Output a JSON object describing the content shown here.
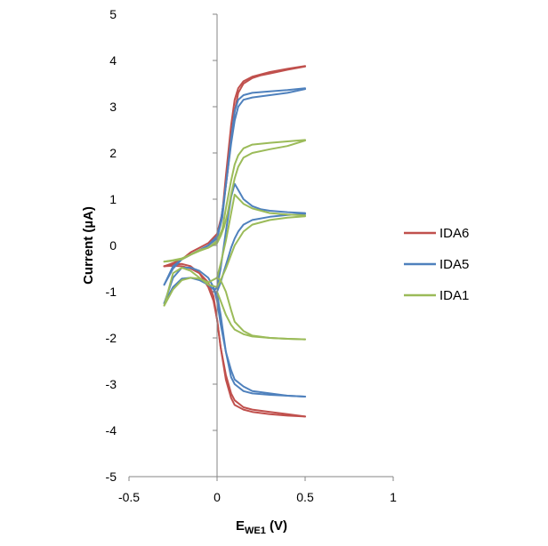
{
  "chart_data": {
    "type": "line",
    "title": "",
    "xlabel_main": "E",
    "xlabel_sub": "WE1",
    "xlabel_unit": " (V)",
    "ylabel": "Current (µA)",
    "xlim": [
      -0.5,
      1
    ],
    "ylim": [
      -5,
      5
    ],
    "x_ticks": [
      -0.5,
      0,
      0.5,
      1
    ],
    "x_tick_labels": [
      "-0.5",
      "0",
      "0.5",
      "1"
    ],
    "y_ticks": [
      -5,
      -4,
      -3,
      -2,
      -1,
      0,
      1,
      2,
      3,
      4,
      5
    ],
    "y_tick_labels": [
      "-5",
      "-4",
      "-3",
      "-2",
      "-1",
      "0",
      "1",
      "2",
      "3",
      "4",
      "5"
    ],
    "grid": false,
    "legend_position": "right",
    "series": [
      {
        "name": "IDA6",
        "color": "#c0504d",
        "curves": [
          {
            "x": [
              -0.3,
              -0.25,
              -0.2,
              -0.15,
              -0.1,
              -0.05,
              0,
              0.03,
              0.05,
              0.08,
              0.1,
              0.12,
              0.15,
              0.2,
              0.25,
              0.3,
              0.4,
              0.5
            ],
            "y": [
              -0.45,
              -0.4,
              -0.3,
              -0.15,
              -0.05,
              0.05,
              0.25,
              0.7,
              1.5,
              2.6,
              3.15,
              3.4,
              3.55,
              3.65,
              3.7,
              3.75,
              3.82,
              3.88
            ]
          },
          {
            "x": [
              0.5,
              0.4,
              0.3,
              0.25,
              0.2,
              0.15,
              0.12,
              0.1,
              0.08,
              0.06,
              0.04,
              0.02,
              0,
              -0.05,
              -0.1,
              -0.15,
              -0.2,
              -0.25,
              -0.3
            ],
            "y": [
              3.87,
              3.8,
              3.72,
              3.68,
              3.62,
              3.5,
              3.3,
              2.9,
              2.3,
              1.6,
              1.0,
              0.5,
              0.2,
              0.0,
              -0.1,
              -0.2,
              -0.3,
              -0.38,
              -0.45
            ]
          },
          {
            "x": [
              -0.3,
              -0.25,
              -0.2,
              -0.15,
              -0.1,
              -0.05,
              -0.02,
              0,
              0.02,
              0.05,
              0.08,
              0.1,
              0.15,
              0.2,
              0.3,
              0.4,
              0.5
            ],
            "y": [
              -0.45,
              -0.42,
              -0.4,
              -0.45,
              -0.6,
              -0.9,
              -1.2,
              -1.6,
              -2.2,
              -2.8,
              -3.2,
              -3.35,
              -3.5,
              -3.55,
              -3.6,
              -3.65,
              -3.7
            ]
          },
          {
            "x": [
              0.5,
              0.4,
              0.3,
              0.2,
              0.15,
              0.1,
              0.08,
              0.05,
              0.02,
              0,
              -0.02,
              -0.05,
              -0.1,
              -0.15,
              -0.2,
              -0.25,
              -0.3
            ],
            "y": [
              -3.7,
              -3.68,
              -3.65,
              -3.6,
              -3.55,
              -3.45,
              -3.3,
              -2.9,
              -2.2,
              -1.6,
              -1.1,
              -0.8,
              -0.6,
              -0.5,
              -0.45,
              -0.44,
              -0.45
            ]
          }
        ]
      },
      {
        "name": "IDA5",
        "color": "#4f81bd",
        "curves": [
          {
            "x": [
              -0.3,
              -0.25,
              -0.2,
              -0.15,
              -0.1,
              -0.05,
              0,
              0.03,
              0.05,
              0.08,
              0.1,
              0.12,
              0.15,
              0.2,
              0.3,
              0.4,
              0.5
            ],
            "y": [
              -0.85,
              -0.45,
              -0.3,
              -0.2,
              -0.1,
              0.0,
              0.15,
              0.6,
              1.3,
              2.3,
              2.9,
              3.15,
              3.25,
              3.3,
              3.33,
              3.36,
              3.4
            ]
          },
          {
            "x": [
              0.5,
              0.4,
              0.3,
              0.2,
              0.15,
              0.12,
              0.1,
              0.08,
              0.06,
              0.04,
              0.02,
              0,
              -0.05,
              -0.1,
              -0.15,
              -0.2,
              -0.25,
              -0.3
            ],
            "y": [
              3.38,
              3.3,
              3.25,
              3.2,
              3.15,
              3.0,
              2.7,
              2.2,
              1.6,
              1.0,
              0.5,
              0.2,
              0.0,
              -0.1,
              -0.2,
              -0.3,
              -0.5,
              -0.85
            ]
          },
          {
            "x": [
              -0.3,
              -0.25,
              -0.2,
              -0.15,
              -0.1,
              -0.05,
              -0.02,
              0,
              0.02,
              0.05,
              0.08,
              0.1,
              0.15,
              0.2,
              0.3,
              0.4,
              0.5
            ],
            "y": [
              -1.25,
              -0.9,
              -0.72,
              -0.7,
              -0.75,
              -0.85,
              -0.95,
              -1.05,
              -1.5,
              -2.3,
              -2.85,
              -3.0,
              -3.15,
              -3.2,
              -3.23,
              -3.25,
              -3.27
            ]
          },
          {
            "x": [
              0.5,
              0.4,
              0.3,
              0.2,
              0.15,
              0.1,
              0.08,
              0.05,
              0.02,
              0,
              -0.02,
              -0.05,
              -0.1,
              -0.15,
              -0.2,
              -0.25,
              -0.3
            ],
            "y": [
              -3.27,
              -3.25,
              -3.2,
              -3.15,
              -3.05,
              -2.9,
              -2.7,
              -2.3,
              -1.7,
              -1.2,
              -0.9,
              -0.7,
              -0.55,
              -0.48,
              -0.48,
              -0.7,
              -1.25
            ]
          },
          {
            "x": [
              -0.02,
              0,
              0.02,
              0.05,
              0.08,
              0.1,
              0.12,
              0.15,
              0.2,
              0.25,
              0.3,
              0.4,
              0.5
            ],
            "y": [
              -1.0,
              -0.9,
              -0.5,
              0.3,
              1.05,
              1.33,
              1.2,
              1.0,
              0.85,
              0.78,
              0.75,
              0.72,
              0.7
            ]
          },
          {
            "x": [
              0.5,
              0.4,
              0.3,
              0.2,
              0.15,
              0.12,
              0.1,
              0.08,
              0.06,
              0.04,
              0.02,
              0
            ],
            "y": [
              0.68,
              0.66,
              0.62,
              0.55,
              0.45,
              0.3,
              0.15,
              -0.05,
              -0.3,
              -0.55,
              -0.8,
              -1.0
            ]
          }
        ]
      },
      {
        "name": "IDA1",
        "color": "#9bbb59",
        "curves": [
          {
            "x": [
              -0.3,
              -0.25,
              -0.2,
              -0.15,
              -0.1,
              -0.05,
              0,
              0.03,
              0.05,
              0.08,
              0.1,
              0.12,
              0.15,
              0.2,
              0.3,
              0.4,
              0.5
            ],
            "y": [
              -0.35,
              -0.33,
              -0.3,
              -0.2,
              -0.1,
              -0.05,
              0.1,
              0.35,
              0.8,
              1.4,
              1.75,
              1.95,
              2.1,
              2.18,
              2.22,
              2.25,
              2.28
            ]
          },
          {
            "x": [
              0.5,
              0.4,
              0.3,
              0.2,
              0.15,
              0.12,
              0.1,
              0.08,
              0.06,
              0.04,
              0.02,
              0,
              -0.05,
              -0.1,
              -0.15,
              -0.2,
              -0.25,
              -0.3
            ],
            "y": [
              2.27,
              2.15,
              2.08,
              2.0,
              1.9,
              1.7,
              1.45,
              1.1,
              0.7,
              0.4,
              0.2,
              0.05,
              -0.05,
              -0.12,
              -0.2,
              -0.28,
              -0.32,
              -0.35
            ]
          },
          {
            "x": [
              -0.3,
              -0.25,
              -0.2,
              -0.15,
              -0.1,
              -0.05,
              0,
              0.02,
              0.05,
              0.1,
              0.15,
              0.2,
              0.3,
              0.4,
              0.5
            ],
            "y": [
              -1.3,
              -0.95,
              -0.75,
              -0.7,
              -0.72,
              -0.8,
              -0.7,
              -0.4,
              0.1,
              1.1,
              0.9,
              0.8,
              0.7,
              0.67,
              0.65
            ]
          },
          {
            "x": [
              0.5,
              0.4,
              0.3,
              0.2,
              0.15,
              0.1,
              0.08,
              0.05,
              0.02,
              0,
              -0.05,
              -0.1,
              -0.15,
              -0.2,
              -0.25,
              -0.3
            ],
            "y": [
              0.63,
              0.6,
              0.55,
              0.45,
              0.3,
              0.0,
              -0.2,
              -0.5,
              -0.75,
              -0.9,
              -0.85,
              -0.7,
              -0.55,
              -0.48,
              -0.6,
              -1.3
            ]
          },
          {
            "x": [
              0,
              0.02,
              0.05,
              0.08,
              0.1,
              0.15,
              0.2,
              0.3,
              0.4,
              0.5
            ],
            "y": [
              -0.7,
              -0.75,
              -1.0,
              -1.4,
              -1.65,
              -1.85,
              -1.95,
              -2.0,
              -2.02,
              -2.03
            ]
          },
          {
            "x": [
              0.5,
              0.4,
              0.3,
              0.2,
              0.15,
              0.1,
              0.08,
              0.05,
              0.02,
              0
            ],
            "y": [
              -2.03,
              -2.02,
              -2.0,
              -1.97,
              -1.92,
              -1.82,
              -1.72,
              -1.5,
              -1.2,
              -1.0
            ]
          }
        ]
      }
    ]
  }
}
